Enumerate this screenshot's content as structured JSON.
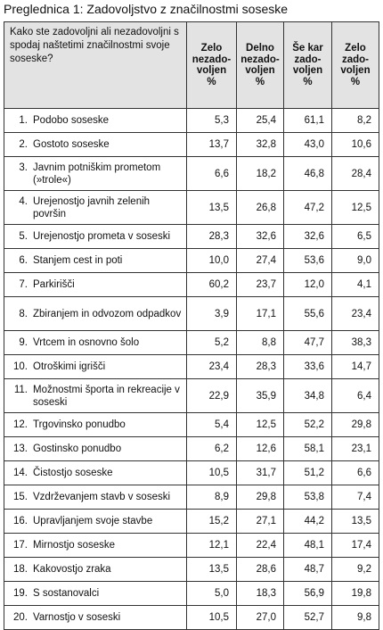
{
  "title": "Preglednica 1: Zadovoljstvo z značilnostmi soseske",
  "table": {
    "header": {
      "question": "Kako ste zadovoljni ali nezadovoljni s spodaj naštetimi značilnostmi svoje soseske?",
      "columns": [
        [
          "Zelo",
          "nezado-",
          "voljen",
          "%"
        ],
        [
          "Delno",
          "nezado-",
          "voljen",
          "%"
        ],
        [
          "Še kar",
          "zado-",
          "voljen",
          "%"
        ],
        [
          "Zelo",
          "zado-",
          "voljen",
          "%"
        ]
      ]
    },
    "rows": [
      {
        "num": "1.",
        "label": "Podobo soseske",
        "values": [
          "5,3",
          "25,4",
          "61,1",
          "8,2"
        ]
      },
      {
        "num": "2.",
        "label": "Gostoto soseske",
        "values": [
          "13,7",
          "32,8",
          "43,0",
          "10,6"
        ]
      },
      {
        "num": "3.",
        "label": "Javnim potniškim prometom (»trole«)",
        "values": [
          "6,6",
          "18,2",
          "46,8",
          "28,4"
        ]
      },
      {
        "num": "4.",
        "label": "Urejenostjo javnih zelenih površin",
        "values": [
          "13,5",
          "26,8",
          "47,2",
          "12,5"
        ]
      },
      {
        "num": "5.",
        "label": "Urejenostjo prometa v soseski",
        "values": [
          "28,3",
          "32,6",
          "32,6",
          "6,5"
        ]
      },
      {
        "num": "6.",
        "label": "Stanjem cest in poti",
        "values": [
          "10,0",
          "27,4",
          "53,6",
          "9,0"
        ]
      },
      {
        "num": "7.",
        "label": "Parkirišči",
        "values": [
          "60,2",
          "23,7",
          "12,0",
          "4,1"
        ]
      },
      {
        "num": "8.",
        "label": "Zbiranjem in odvozom odpadkov",
        "values": [
          "3,9",
          "17,1",
          "55,6",
          "23,4"
        ]
      },
      {
        "num": "9.",
        "label": "Vrtcem in osnovno šolo",
        "values": [
          "5,2",
          "8,8",
          "47,7",
          "38,3"
        ]
      },
      {
        "num": "10.",
        "label": "Otroškimi igrišči",
        "values": [
          "23,4",
          "28,3",
          "33,6",
          "14,7"
        ]
      },
      {
        "num": "11.",
        "label": "Možnostmi športa in rekreacije v soseski",
        "values": [
          "22,9",
          "35,9",
          "34,8",
          "6,4"
        ]
      },
      {
        "num": "12.",
        "label": "Trgovinsko ponudbo",
        "values": [
          "5,4",
          "12,5",
          "52,2",
          "29,8"
        ]
      },
      {
        "num": "13.",
        "label": "Gostinsko ponudbo",
        "values": [
          "6,2",
          "12,6",
          "58,1",
          "23,1"
        ]
      },
      {
        "num": "14.",
        "label": "Čistostjo soseske",
        "values": [
          "10,5",
          "31,7",
          "51,2",
          "6,6"
        ]
      },
      {
        "num": "15.",
        "label": "Vzdrževanjem stavb v soseski",
        "values": [
          "8,9",
          "29,8",
          "53,8",
          "7,4"
        ]
      },
      {
        "num": "16.",
        "label": "Upravljanjem svoje stavbe",
        "values": [
          "15,2",
          "27,1",
          "44,2",
          "13,5"
        ]
      },
      {
        "num": "17.",
        "label": "Mirnostjo soseske",
        "values": [
          "12,1",
          "22,4",
          "48,1",
          "17,4"
        ]
      },
      {
        "num": "18.",
        "label": "Kakovostjo zraka",
        "values": [
          "13,5",
          "28,6",
          "48,7",
          "9,2"
        ]
      },
      {
        "num": "19.",
        "label": "S sostanovalci",
        "values": [
          "5,0",
          "18,3",
          "56,9",
          "19,8"
        ]
      },
      {
        "num": "20.",
        "label": "Varnostjo v soseski",
        "values": [
          "10,5",
          "27,0",
          "52,7",
          "9,8"
        ]
      }
    ]
  }
}
